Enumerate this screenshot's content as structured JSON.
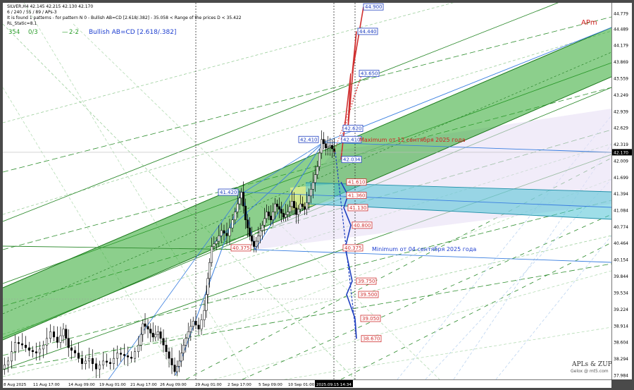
{
  "header": {
    "line1": "SILVER,H4  42.145 42.215 42.130 42.170",
    "line2": "6 / 240 / 55 / 89 / APs-3",
    "line3": "It is found 1 patterns  -  for pattern N 0 - Bullish AB=CD [2.618/.382] - 35.058 < Range of the prices D < 35.422",
    "line4": "RL_Static=8.1",
    "stat1": "354",
    "stat2": "0/3",
    "stat3": "2-2",
    "pattern": "Bullish AB=CD [2.618/.382]"
  },
  "corner_label": "APm",
  "watermark": {
    "line1": "APLs & ZUP",
    "line2": "Gelox @ mt5.com"
  },
  "annotations": {
    "max_text": "Maximum от 12 сентября 2025 года",
    "min_text": "Minimum от 04 сентября 2025 года"
  },
  "colors": {
    "channel_green": "#2ea82e",
    "channel_teal": "#4fc3d6",
    "target_red": "#d03030",
    "target_blue": "#2040c0",
    "fork_blue": "#2b7fe6",
    "candle": "#000000"
  },
  "chart_data": {
    "type": "candlestick",
    "symbol": "SILVER",
    "timeframe": "H4",
    "current_price": "42.170",
    "ylim": [
      37.984,
      44.87
    ],
    "y_ticks": [
      "44.779",
      "44.489",
      "44.179",
      "43.869",
      "43.559",
      "43.249",
      "42.939",
      "42.629",
      "42.319",
      "42.009",
      "41.699",
      "41.394",
      "41.084",
      "40.774",
      "40.464",
      "40.154",
      "39.844",
      "39.534",
      "39.224",
      "38.914",
      "38.604",
      "38.294",
      "37.984"
    ],
    "x_ticks": [
      "8 Aug 2025",
      "11 Aug 17:00",
      "14 Aug 09:00",
      "19 Aug 01:00",
      "21 Aug 17:00",
      "26 Aug 09:00",
      "29 Aug 01:00",
      "2 Sep 17:00",
      "5 Sep 09:00",
      "10 Sep 01:00",
      "2025.09.15 14:34"
    ],
    "up_targets": [
      "44.900",
      "44.440",
      "43.650",
      "42.620",
      "42.410",
      "42.034"
    ],
    "down_targets": [
      "41.610",
      "41.360",
      "41.130",
      "40.800",
      "40.375",
      "39.750",
      "39.500",
      "39.050",
      "38.670"
    ],
    "left_labels": [
      "41.420",
      "40.375",
      "42.410"
    ],
    "price_path": [
      [
        0,
        38.1
      ],
      [
        10,
        38.25
      ],
      [
        20,
        38.6
      ],
      [
        30,
        38.55
      ],
      [
        40,
        38.45
      ],
      [
        50,
        38.4
      ],
      [
        60,
        38.55
      ],
      [
        70,
        38.8
      ],
      [
        80,
        38.6
      ],
      [
        88,
        38.85
      ],
      [
        95,
        38.5
      ],
      [
        105,
        38.4
      ],
      [
        115,
        38.2
      ],
      [
        125,
        38.3
      ],
      [
        135,
        38.1
      ],
      [
        145,
        38.25
      ],
      [
        155,
        38.2
      ],
      [
        165,
        38.4
      ],
      [
        175,
        38.35
      ],
      [
        185,
        38.3
      ],
      [
        195,
        38.55
      ],
      [
        200,
        38.95
      ],
      [
        208,
        38.85
      ],
      [
        215,
        38.7
      ],
      [
        222,
        38.8
      ],
      [
        230,
        38.55
      ],
      [
        238,
        38.3
      ],
      [
        246,
        38.05
      ],
      [
        252,
        38.25
      ],
      [
        258,
        38.55
      ],
      [
        265,
        38.8
      ],
      [
        272,
        39.0
      ],
      [
        280,
        38.85
      ],
      [
        288,
        39.2
      ],
      [
        292,
        39.8
      ],
      [
        298,
        40.4
      ],
      [
        305,
        40.5
      ],
      [
        312,
        40.7
      ],
      [
        320,
        40.6
      ],
      [
        328,
        40.9
      ],
      [
        335,
        41.2
      ],
      [
        340,
        41.42
      ],
      [
        346,
        40.9
      ],
      [
        352,
        40.6
      ],
      [
        358,
        40.4
      ],
      [
        364,
        40.6
      ],
      [
        370,
        40.8
      ],
      [
        376,
        41.05
      ],
      [
        382,
        40.9
      ],
      [
        388,
        41.2
      ],
      [
        394,
        41.1
      ],
      [
        400,
        40.95
      ],
      [
        406,
        41.05
      ],
      [
        412,
        41.25
      ],
      [
        418,
        41.0
      ],
      [
        424,
        41.2
      ],
      [
        430,
        41.1
      ],
      [
        436,
        41.35
      ],
      [
        442,
        41.6
      ],
      [
        448,
        41.9
      ],
      [
        454,
        42.41
      ],
      [
        460,
        42.25
      ],
      [
        466,
        42.3
      ],
      [
        472,
        42.17
      ]
    ],
    "title": ""
  }
}
